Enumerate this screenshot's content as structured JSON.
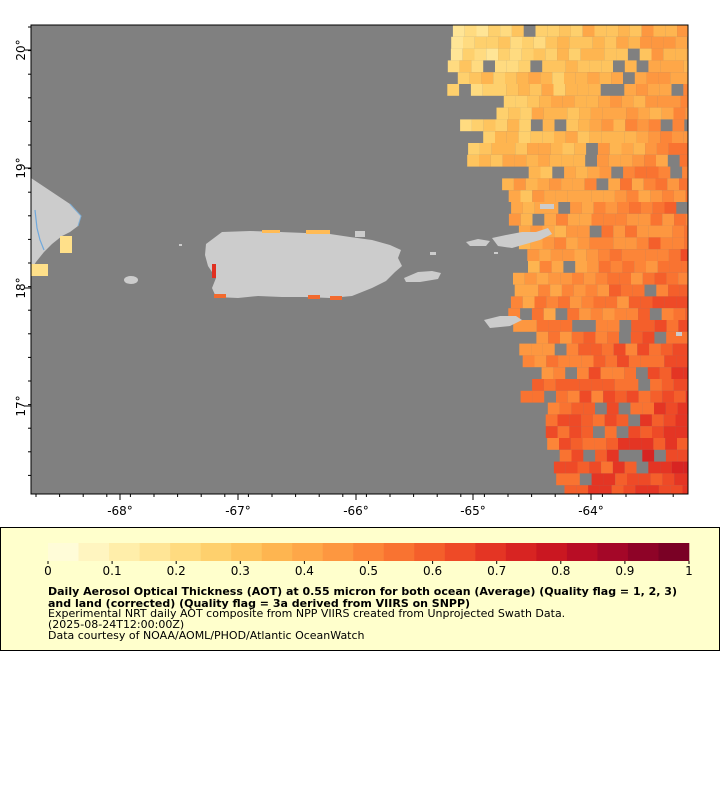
{
  "map": {
    "longitude_ticks": [
      "-68°",
      "-67°",
      "-66°",
      "-65°",
      "-64°"
    ],
    "latitude_ticks": [
      "20°",
      "19°",
      "18°",
      "17°"
    ],
    "colors": {
      "background": "#ffffff",
      "no_data": "#808080",
      "land": "#cccccc",
      "coast_water": "#6fa8dc"
    }
  },
  "legend": {
    "scale_min": 0,
    "scale_max": 1,
    "tick_labels": [
      "0",
      "0.1",
      "0.2",
      "0.3",
      "0.4",
      "0.5",
      "0.6",
      "0.7",
      "0.8",
      "0.9",
      "1"
    ],
    "palette": [
      "#fffcd8",
      "#fff5c0",
      "#ffeeaa",
      "#ffe596",
      "#ffdb80",
      "#fed06d",
      "#fec45e",
      "#feb550",
      "#fea748",
      "#fd9740",
      "#fc8538",
      "#f97331",
      "#f45f2b",
      "#ee4a27",
      "#e43524",
      "#d82422",
      "#ca1721",
      "#b80d25",
      "#a40728",
      "#8e0327",
      "#7a0125"
    ],
    "title": "Daily Aerosol Optical Thickness (AOT) at 0.55 micron for both ocean (Average) (Quality flag = 1, 2, 3) and land (corrected) (Quality flag = 3a derived from VIIRS on SNPP)",
    "line1": "Experimental NRT daily AOT composite from NPP VIIRS created from Unprojected Swath Data.",
    "line2": "(2025-08-24T12:00:00Z)",
    "line3": "Data courtesy of NOAA/AOML/PHOD/Atlantic OceanWatch",
    "background": "#ffffcc"
  }
}
